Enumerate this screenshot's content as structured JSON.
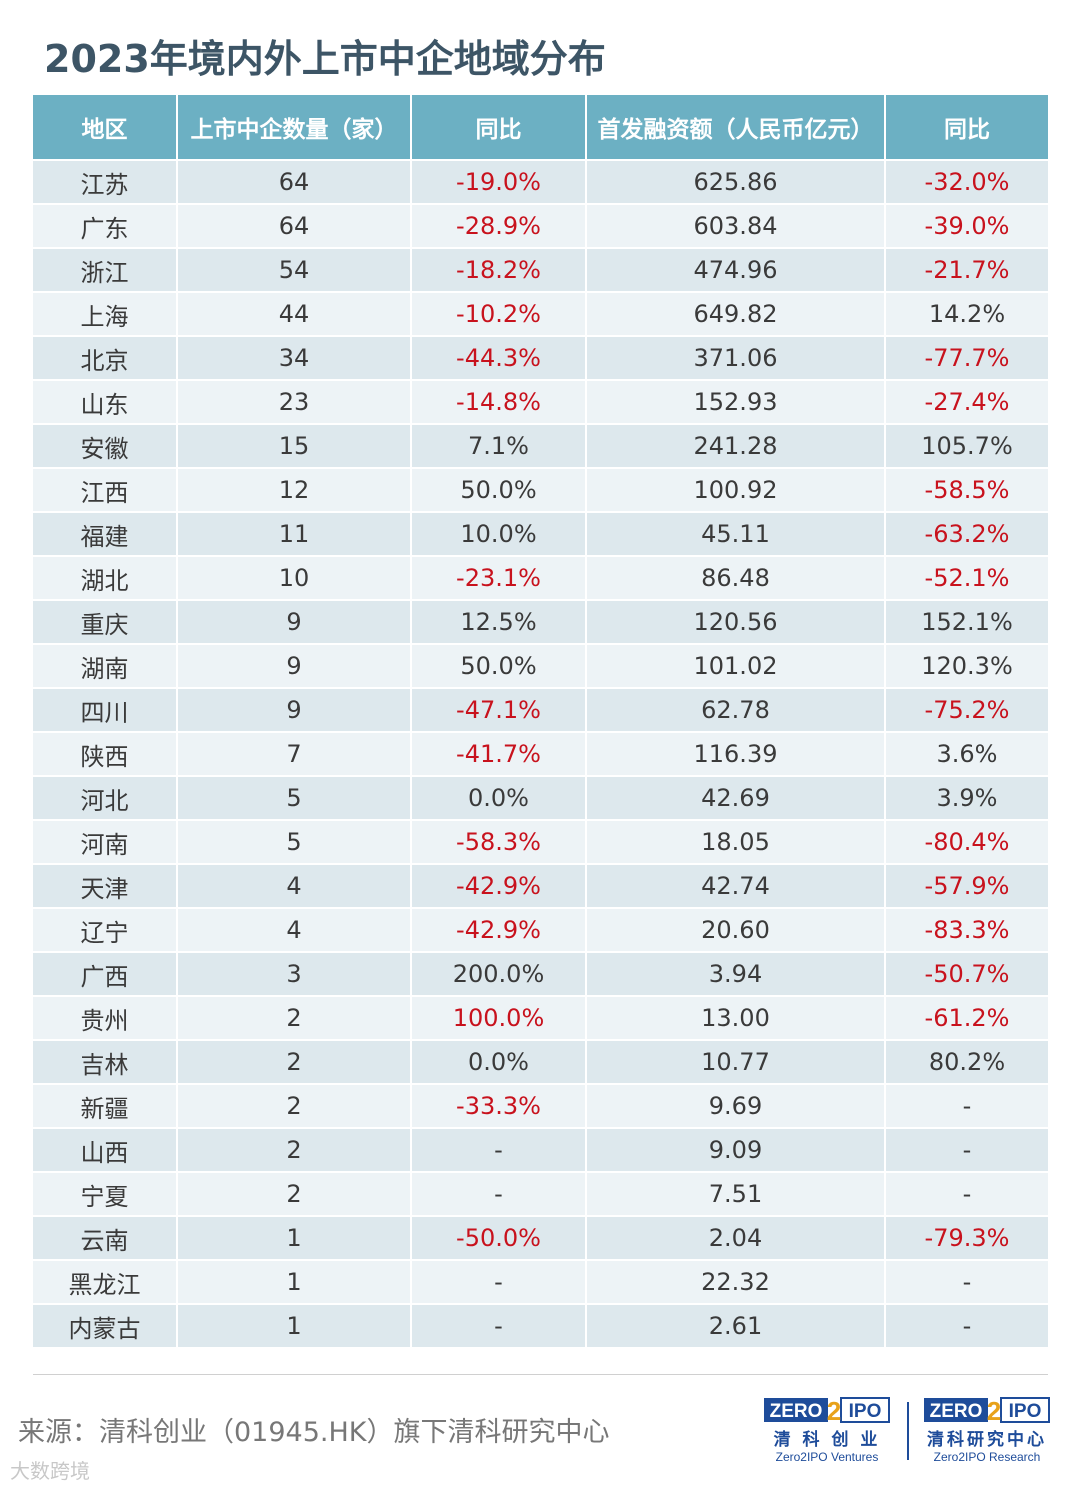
{
  "title": "2023年境内外上市中企地域分布",
  "colors": {
    "header_bg": "#6cb0c3",
    "row_odd": "#dde8ed",
    "row_even": "#edf3f6",
    "negative": "#c8121d",
    "title": "#3d5566",
    "logo": "#1e4c9a"
  },
  "chart_data": {
    "type": "table",
    "columns": [
      "地区",
      "上市中企数量（家）",
      "同比",
      "首发融资额（人民币亿元）",
      "同比"
    ],
    "rows": [
      [
        "江苏",
        "64",
        "-19.0%",
        "625.86",
        "-32.0%"
      ],
      [
        "广东",
        "64",
        "-28.9%",
        "603.84",
        "-39.0%"
      ],
      [
        "浙江",
        "54",
        "-18.2%",
        "474.96",
        "-21.7%"
      ],
      [
        "上海",
        "44",
        "-10.2%",
        "649.82",
        "14.2%"
      ],
      [
        "北京",
        "34",
        "-44.3%",
        "371.06",
        "-77.7%"
      ],
      [
        "山东",
        "23",
        "-14.8%",
        "152.93",
        "-27.4%"
      ],
      [
        "安徽",
        "15",
        "7.1%",
        "241.28",
        "105.7%"
      ],
      [
        "江西",
        "12",
        "50.0%",
        "100.92",
        "-58.5%"
      ],
      [
        "福建",
        "11",
        "10.0%",
        "45.11",
        "-63.2%"
      ],
      [
        "湖北",
        "10",
        "-23.1%",
        "86.48",
        "-52.1%"
      ],
      [
        "重庆",
        "9",
        "12.5%",
        "120.56",
        "152.1%"
      ],
      [
        "湖南",
        "9",
        "50.0%",
        "101.02",
        "120.3%"
      ],
      [
        "四川",
        "9",
        "-47.1%",
        "62.78",
        "-75.2%"
      ],
      [
        "陕西",
        "7",
        "-41.7%",
        "116.39",
        "3.6%"
      ],
      [
        "河北",
        "5",
        "0.0%",
        "42.69",
        "3.9%"
      ],
      [
        "河南",
        "5",
        "-58.3%",
        "18.05",
        "-80.4%"
      ],
      [
        "天津",
        "4",
        "-42.9%",
        "42.74",
        "-57.9%"
      ],
      [
        "辽宁",
        "4",
        "-42.9%",
        "20.60",
        "-83.3%"
      ],
      [
        "广西",
        "3",
        "200.0%",
        "3.94",
        "-50.7%"
      ],
      [
        "贵州",
        "2",
        "100.0%",
        "13.00",
        "-61.2%"
      ],
      [
        "吉林",
        "2",
        "0.0%",
        "10.77",
        "80.2%"
      ],
      [
        "新疆",
        "2",
        "-33.3%",
        "9.69",
        "-"
      ],
      [
        "山西",
        "2",
        "-",
        "9.09",
        "-"
      ],
      [
        "宁夏",
        "2",
        "-",
        "7.51",
        "-"
      ],
      [
        "云南",
        "1",
        "-50.0%",
        "2.04",
        "-79.3%"
      ],
      [
        "黑龙江",
        "1",
        "-",
        "22.32",
        "-"
      ],
      [
        "内蒙古",
        "1",
        "-",
        "2.61",
        "-"
      ]
    ],
    "red_cells": [
      [
        0,
        2
      ],
      [
        0,
        4
      ],
      [
        1,
        2
      ],
      [
        1,
        4
      ],
      [
        2,
        2
      ],
      [
        2,
        4
      ],
      [
        3,
        2
      ],
      [
        4,
        2
      ],
      [
        4,
        4
      ],
      [
        5,
        2
      ],
      [
        5,
        4
      ],
      [
        7,
        4
      ],
      [
        8,
        4
      ],
      [
        9,
        2
      ],
      [
        9,
        4
      ],
      [
        12,
        2
      ],
      [
        12,
        4
      ],
      [
        13,
        2
      ],
      [
        15,
        2
      ],
      [
        15,
        4
      ],
      [
        16,
        2
      ],
      [
        16,
        4
      ],
      [
        17,
        2
      ],
      [
        17,
        4
      ],
      [
        18,
        4
      ],
      [
        19,
        2
      ],
      [
        19,
        4
      ],
      [
        21,
        2
      ],
      [
        24,
        2
      ],
      [
        24,
        4
      ]
    ]
  },
  "footer": {
    "source": "来源：清科创业（01945.HK）旗下清科研究中心",
    "watermark": "大数跨境"
  },
  "logos": [
    {
      "mark_left": "ZERO",
      "mark_num": "2",
      "mark_right": "IPO",
      "cn": "清 科 创 业",
      "en": "Zero2IPO Ventures"
    },
    {
      "mark_left": "ZERO",
      "mark_num": "2",
      "mark_right": "IPO",
      "cn": "清科研究中心",
      "en": "Zero2IPO Research"
    }
  ]
}
